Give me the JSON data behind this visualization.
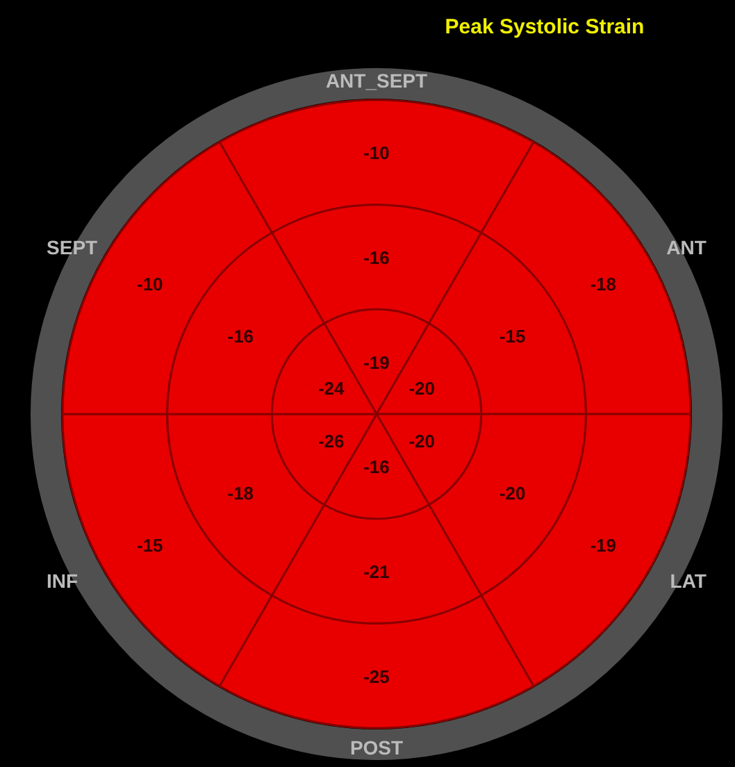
{
  "chart_data": {
    "type": "other",
    "title": "Peak Systolic Strain",
    "categories": [
      "ANT_SEPT",
      "ANT",
      "LAT",
      "POST",
      "INF",
      "SEPT"
    ],
    "series": [
      {
        "color": "#e80000",
        "values": [
          -10,
          -18,
          -19,
          -25,
          -15,
          -10
        ]
      },
      {
        "color": "#e80000",
        "values": [
          -16,
          -15,
          -20,
          -21,
          -18,
          -16
        ]
      },
      {
        "color": "#e80000",
        "values": [
          -19,
          -20,
          -20,
          -16,
          -26,
          -24
        ]
      }
    ],
    "data_labels": true
  }
}
